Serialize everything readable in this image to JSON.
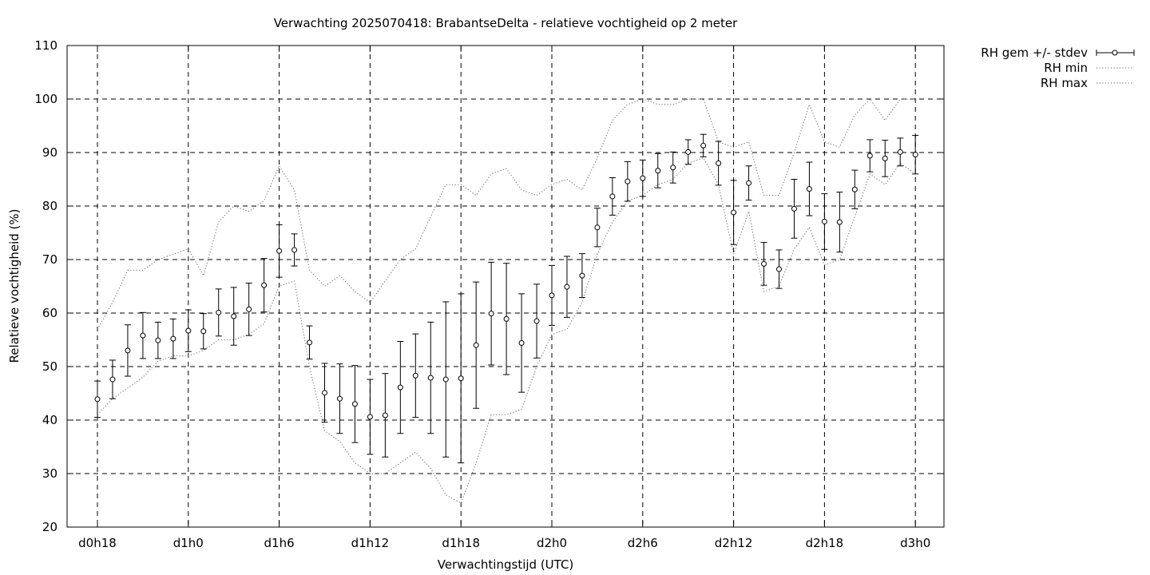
{
  "chart_data": {
    "type": "line",
    "title": "Verwachting 2025070418: BrabantseDelta - relatieve vochtigheid op 2 meter",
    "xlabel": "Verwachtingstijd (UTC)",
    "ylabel": "Relatieve vochtigheid (%)",
    "xlim": [
      16,
      99
    ],
    "ylim": [
      20,
      110
    ],
    "yticks": [
      20,
      30,
      40,
      50,
      60,
      70,
      80,
      90,
      100,
      110
    ],
    "xticks": [
      {
        "x": 18,
        "label": "d0h18"
      },
      {
        "x": 24,
        "label": "d1h0"
      },
      {
        "x": 30,
        "label": "d1h6"
      },
      {
        "x": 36,
        "label": "d1h12"
      },
      {
        "x": 42,
        "label": "d1h18"
      },
      {
        "x": 48,
        "label": "d2h0"
      },
      {
        "x": 54,
        "label": "d2h6"
      },
      {
        "x": 60,
        "label": "d2h12"
      },
      {
        "x": 66,
        "label": "d2h18"
      },
      {
        "x": 72,
        "label": "d3h0"
      }
    ],
    "grid": true,
    "legend_position": "outside-top-right",
    "series": [
      {
        "name": "RH gem +/- stdev",
        "style": "errorbars",
        "x": [
          18,
          19,
          20,
          21,
          22,
          23,
          24,
          25,
          26,
          27,
          28,
          29,
          30,
          31,
          32,
          33,
          34,
          35,
          36,
          37,
          38,
          39,
          40,
          41,
          42,
          43,
          44,
          45,
          46,
          47,
          48,
          49,
          50,
          51,
          52,
          53,
          54,
          55,
          56,
          57,
          58,
          59,
          60,
          61,
          62,
          63,
          64,
          65,
          66,
          67,
          68,
          69,
          70,
          71,
          72
        ],
        "values": [
          43.9,
          47.6,
          53.0,
          55.8,
          54.9,
          55.2,
          56.7,
          56.6,
          60.1,
          59.4,
          60.7,
          65.2,
          71.6,
          71.8,
          54.5,
          45.1,
          44.0,
          43.0,
          40.6,
          40.9,
          46.1,
          48.3,
          47.9,
          47.6,
          47.8,
          54.0,
          59.9,
          58.9,
          54.4,
          58.5,
          63.3,
          64.9,
          67.0,
          76.0,
          81.8,
          84.6,
          85.2,
          86.6,
          87.2,
          90.1,
          91.3,
          88.0,
          78.8,
          84.3,
          69.2,
          68.2,
          79.5,
          83.2,
          77.1,
          77.0,
          83.1,
          89.4,
          88.9,
          90.1,
          89.6
        ],
        "stdev": [
          3.4,
          3.6,
          4.8,
          4.3,
          3.4,
          3.7,
          3.9,
          3.3,
          4.4,
          5.4,
          4.9,
          5.0,
          4.9,
          3.0,
          3.1,
          5.5,
          6.5,
          7.2,
          7.0,
          7.8,
          8.6,
          7.8,
          10.4,
          14.5,
          15.8,
          11.8,
          9.6,
          10.4,
          9.2,
          6.9,
          5.6,
          5.7,
          4.1,
          3.6,
          3.5,
          3.7,
          3.4,
          3.2,
          2.9,
          2.3,
          2.1,
          4.1,
          6.0,
          3.2,
          4.0,
          3.6,
          5.5,
          5.0,
          5.2,
          5.6,
          3.6,
          3.0,
          3.4,
          2.6,
          3.6
        ]
      },
      {
        "name": "RH min",
        "style": "dotted",
        "x": [
          18,
          19,
          20,
          21,
          22,
          23,
          24,
          25,
          26,
          27,
          28,
          29,
          30,
          31,
          32,
          33,
          34,
          35,
          36,
          37,
          38,
          39,
          40,
          41,
          42,
          43,
          44,
          45,
          46,
          47,
          48,
          49,
          50,
          51,
          52,
          53,
          54,
          55,
          56,
          57,
          58,
          59,
          60,
          61,
          62,
          63,
          64,
          65,
          66,
          67,
          68,
          69,
          70,
          71,
          72
        ],
        "values": [
          41.0,
          44.0,
          46.0,
          48.0,
          51.0,
          52.0,
          52.0,
          53.0,
          55.0,
          55.0,
          56.0,
          58.0,
          65.0,
          66.0,
          50.0,
          38.0,
          36.0,
          32.0,
          30.0,
          30.0,
          32.0,
          34.0,
          31.0,
          26.0,
          24.5,
          32.0,
          41.0,
          41.0,
          42.0,
          50.0,
          56.0,
          57.0,
          62.0,
          71.0,
          77.0,
          81.0,
          82.0,
          84.0,
          85.0,
          88.0,
          89.0,
          84.0,
          71.0,
          79.0,
          64.0,
          65.0,
          72.0,
          76.0,
          69.0,
          70.0,
          78.0,
          86.0,
          84.0,
          88.0,
          86.0
        ]
      },
      {
        "name": "RH max",
        "style": "dotted",
        "x": [
          18,
          19,
          20,
          21,
          22,
          23,
          24,
          25,
          26,
          27,
          28,
          29,
          30,
          31,
          32,
          33,
          34,
          35,
          36,
          37,
          38,
          39,
          40,
          41,
          42,
          43,
          44,
          45,
          46,
          47,
          48,
          49,
          50,
          51,
          52,
          53,
          54,
          55,
          56,
          57,
          58,
          59,
          60,
          61,
          62,
          63,
          64,
          65,
          66,
          67,
          68,
          69,
          70,
          71,
          72
        ],
        "values": [
          57.0,
          62.0,
          68.0,
          68.0,
          70.0,
          71.0,
          72.0,
          67.0,
          77.0,
          80.0,
          79.0,
          81.0,
          87.5,
          83.0,
          68.0,
          65.0,
          67.0,
          64.0,
          62.0,
          66.0,
          70.0,
          72.0,
          78.0,
          84.0,
          84.0,
          82.0,
          86.0,
          87.0,
          83.0,
          82.0,
          84.0,
          85.0,
          83.0,
          89.0,
          96.0,
          99.0,
          100.0,
          99.0,
          99.0,
          100.0,
          100.0,
          92.0,
          91.0,
          92.0,
          82.0,
          82.0,
          90.0,
          99.0,
          92.0,
          91.0,
          97.0,
          100.0,
          96.0,
          100.0,
          100.0
        ]
      }
    ]
  }
}
